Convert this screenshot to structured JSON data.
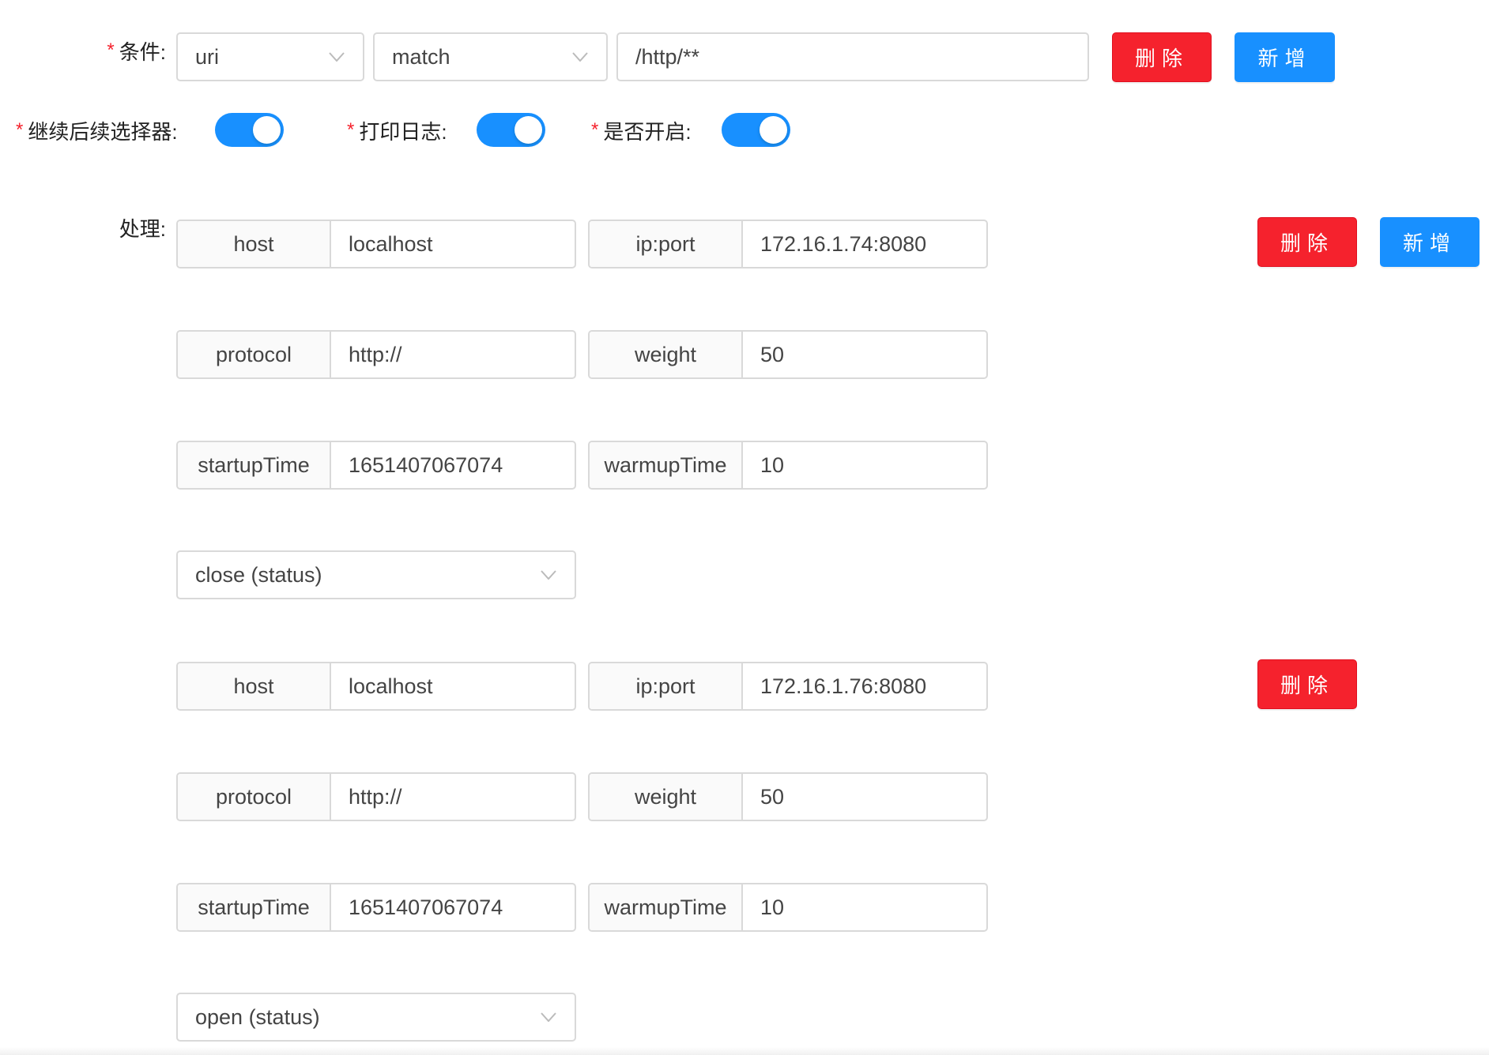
{
  "condition": {
    "label": "条件:",
    "param_type": "uri",
    "operator": "match",
    "value": "/http/**",
    "delete_label": "删除",
    "add_label": "新增"
  },
  "toggles": [
    {
      "label": "继续后续选择器:",
      "on": true
    },
    {
      "label": "打印日志:",
      "on": true
    },
    {
      "label": "是否开启:",
      "on": true
    }
  ],
  "handle": {
    "label": "处理:",
    "delete_label": "删除",
    "add_label": "新增",
    "upstreams": [
      {
        "host_label": "host",
        "host": "localhost",
        "ipport_label": "ip:port",
        "ipport": "172.16.1.74:8080",
        "protocol_label": "protocol",
        "protocol": "http://",
        "weight_label": "weight",
        "weight": "50",
        "startup_label": "startupTime",
        "startup": "1651407067074",
        "warmup_label": "warmupTime",
        "warmup": "10",
        "status": "close (status)"
      },
      {
        "host_label": "host",
        "host": "localhost",
        "ipport_label": "ip:port",
        "ipport": "172.16.1.76:8080",
        "protocol_label": "protocol",
        "protocol": "http://",
        "weight_label": "weight",
        "weight": "50",
        "startup_label": "startupTime",
        "startup": "1651407067074",
        "warmup_label": "warmupTime",
        "warmup": "10",
        "status": "open (status)"
      }
    ]
  },
  "colors": {
    "danger": "#f5222d",
    "primary": "#1890ff"
  }
}
